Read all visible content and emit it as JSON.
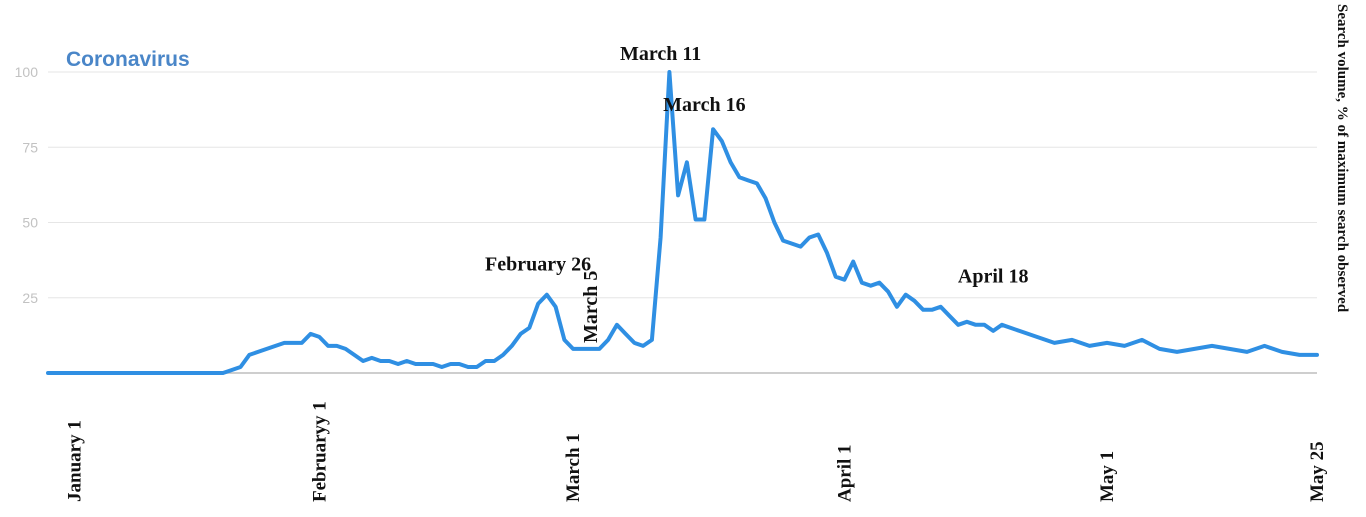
{
  "chart_data": {
    "type": "line",
    "title": "Coronavirus",
    "ylabel": "Search volume, % of maximum search observed",
    "ylim": [
      0,
      100
    ],
    "yticks": [
      "100",
      "75",
      "50",
      "25"
    ],
    "xlim": [
      1,
      146
    ],
    "xticks": [
      {
        "label": "January 1",
        "day": 4
      },
      {
        "label": "Februaryy 1",
        "day": 32
      },
      {
        "label": "March 1",
        "day": 61
      },
      {
        "label": "April 1",
        "day": 92
      },
      {
        "label": "May  1",
        "day": 122
      },
      {
        "label": "May  25",
        "day": 146
      }
    ],
    "annotations": [
      {
        "label": "March 11",
        "day": 71,
        "value": 104,
        "vertical": false
      },
      {
        "label": "March 16",
        "day": 76,
        "value": 87,
        "vertical": false
      },
      {
        "label": "February  26",
        "day": 57,
        "value": 34,
        "vertical": false
      },
      {
        "label": "March 5",
        "day": 65,
        "value": 22,
        "vertical": true
      },
      {
        "label": "April  18",
        "day": 109,
        "value": 30,
        "vertical": false
      }
    ],
    "series": [
      {
        "x": [
          1,
          10,
          20,
          21,
          22,
          23,
          24,
          25,
          27,
          28,
          29,
          30,
          31,
          32,
          33,
          34,
          35,
          36,
          37,
          38,
          39,
          40,
          41,
          42,
          43,
          44,
          45,
          46,
          47,
          48,
          49,
          50,
          51,
          52,
          53,
          54,
          55,
          56,
          57,
          58,
          59,
          60,
          61,
          62,
          63,
          64,
          65,
          66,
          67,
          68,
          69,
          70,
          71,
          72,
          73,
          74,
          75,
          76,
          77,
          78,
          79,
          80,
          81,
          82,
          83,
          84,
          85,
          86,
          87,
          88,
          89,
          90,
          91,
          92,
          93,
          94,
          95,
          96,
          97,
          98,
          99,
          100,
          101,
          102,
          103,
          104,
          105,
          106,
          107,
          108,
          109,
          110,
          112,
          114,
          116,
          118,
          120,
          122,
          124,
          126,
          128,
          130,
          132,
          134,
          136,
          138,
          140,
          142,
          144,
          146
        ],
        "y": [
          0,
          0,
          0,
          0,
          1,
          2,
          6,
          7,
          9,
          10,
          10,
          10,
          13,
          12,
          9,
          9,
          8,
          6,
          4,
          5,
          4,
          4,
          3,
          4,
          3,
          3,
          3,
          2,
          3,
          3,
          2,
          2,
          4,
          4,
          6,
          9,
          13,
          15,
          23,
          26,
          22,
          11,
          8,
          8,
          8,
          8,
          11,
          16,
          13,
          10,
          9,
          11,
          45,
          100,
          59,
          70,
          51,
          51,
          81,
          77,
          70,
          65,
          64,
          63,
          58,
          50,
          44,
          43,
          42,
          45,
          46,
          40,
          32,
          31,
          37,
          30,
          29,
          30,
          27,
          22,
          26,
          24,
          21,
          21,
          22,
          19,
          16,
          17,
          16,
          16,
          14,
          16,
          14,
          12,
          10,
          11,
          9,
          10,
          9,
          11,
          8,
          7,
          8,
          9,
          8,
          7,
          9,
          7,
          6,
          6
        ]
      }
    ]
  }
}
